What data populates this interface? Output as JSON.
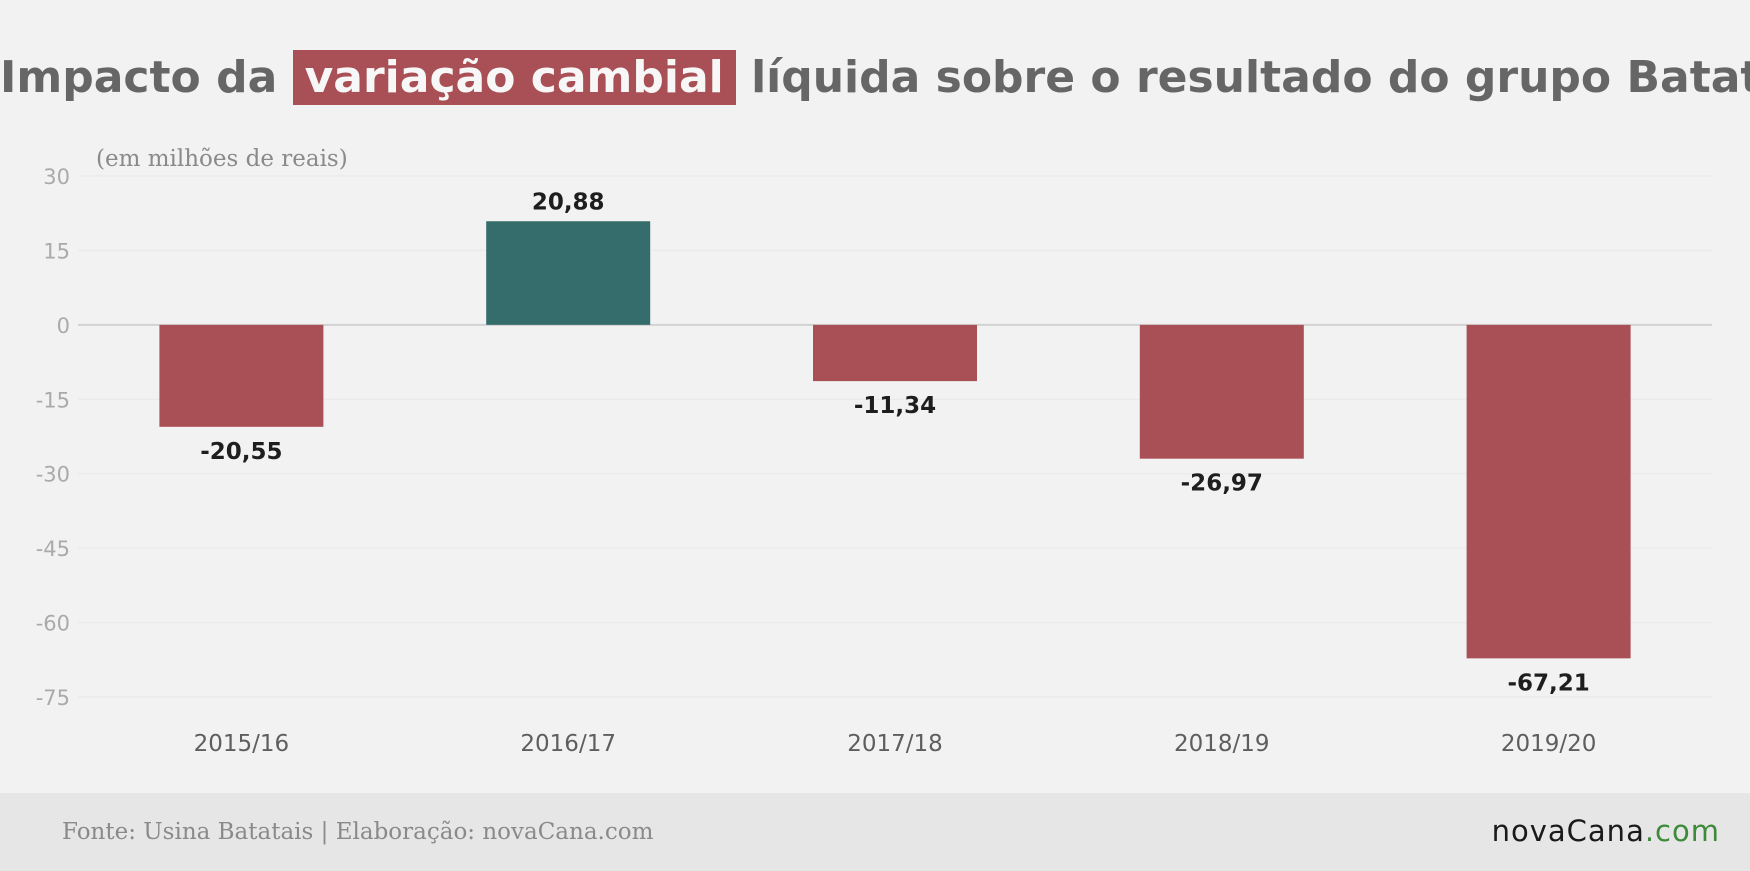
{
  "header": {
    "title_pre": "Impacto da",
    "title_highlight": "variação cambial",
    "title_post": "líquida sobre o resultado do grupo Batatais",
    "subtitle": "(em milhões de reais)"
  },
  "footer": {
    "source": "Fonte: Usina Batatais | Elaboração: novaCana.com",
    "logo_main": "novaCana",
    "logo_suffix": ".com"
  },
  "colors": {
    "negative": "#a85056",
    "positive": "#346d6b",
    "title": "#666666",
    "axis_text": "#aaaaaa"
  },
  "chart_data": {
    "type": "bar",
    "categories": [
      "2015/16",
      "2016/17",
      "2017/18",
      "2018/19",
      "2019/20"
    ],
    "values": [
      -20.55,
      20.88,
      -11.34,
      -26.97,
      -67.21
    ],
    "value_labels": [
      "-20,55",
      "20,88",
      "-11,34",
      "-26,97",
      "-67,21"
    ],
    "title": "Impacto da variação cambial líquida sobre o resultado do grupo Batatais",
    "ylabel": "(em milhões de reais)",
    "yticks": [
      30,
      15,
      0,
      -15,
      -30,
      -45,
      -60,
      -75
    ],
    "ylim": [
      -75,
      30
    ],
    "grid": true
  }
}
